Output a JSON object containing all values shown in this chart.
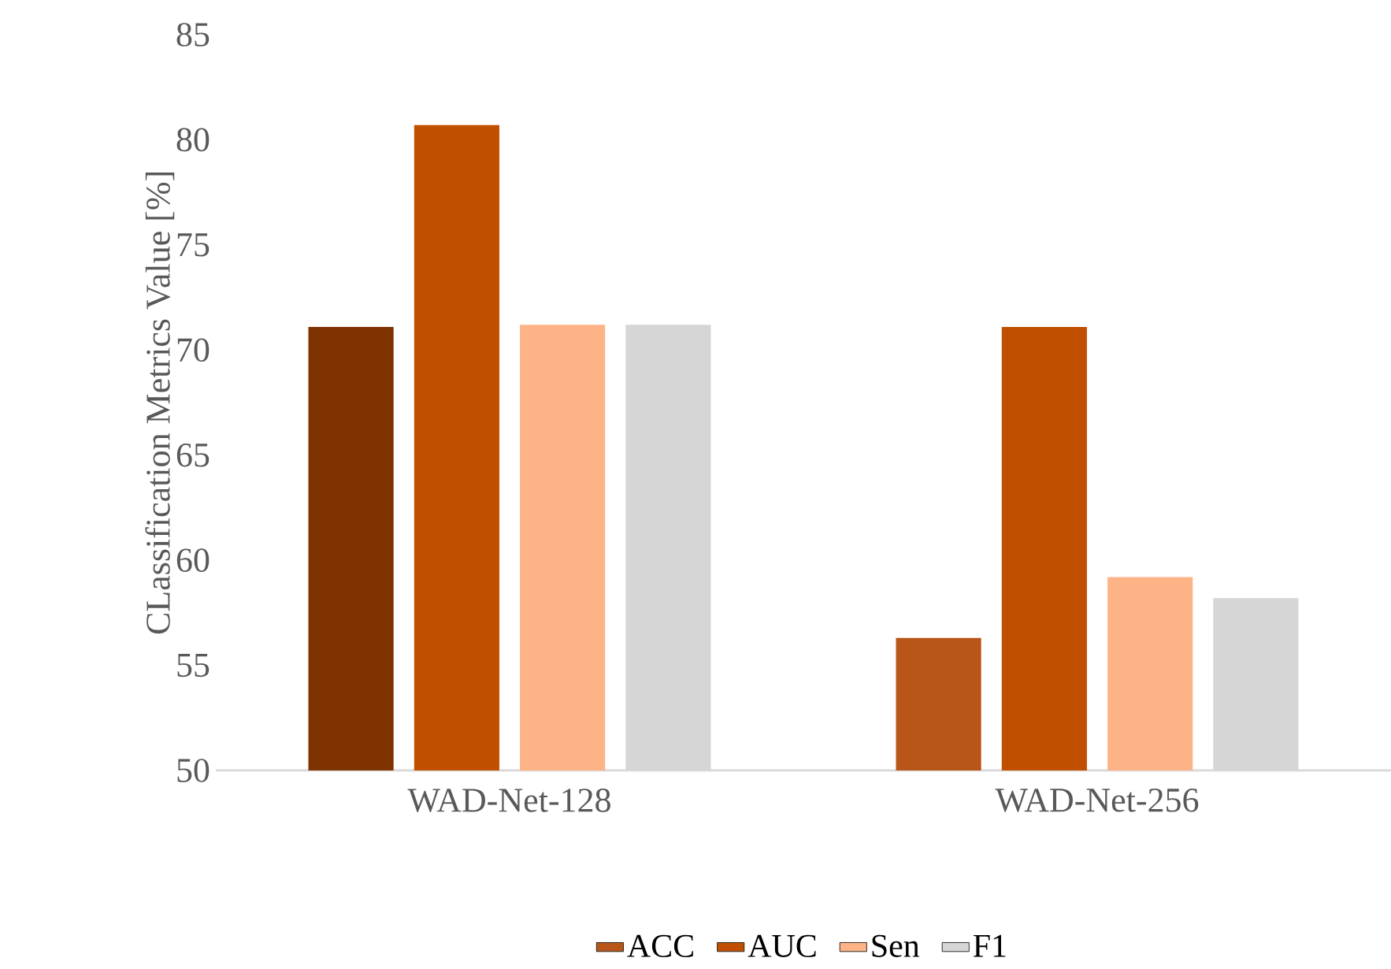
{
  "chart_data": {
    "type": "bar",
    "ylabel": "CLassification  Metrics Value [%]",
    "categories": [
      "WAD-Net-128",
      "WAD-Net-256"
    ],
    "series": [
      {
        "name": "ACC",
        "color": "#b8561a",
        "colors": [
          "#7f3300",
          "#b8561a"
        ],
        "values": [
          71.1,
          56.3
        ]
      },
      {
        "name": "AUC",
        "color": "#c05000",
        "values": [
          80.7,
          71.1
        ]
      },
      {
        "name": "Sen",
        "color": "#fdb386",
        "values": [
          71.2,
          59.2
        ]
      },
      {
        "name": "F1",
        "color": "#d6d6d6",
        "values": [
          71.2,
          58.2
        ]
      }
    ],
    "ylim": [
      50,
      85
    ],
    "yticks": [
      50,
      55,
      60,
      65,
      70,
      75,
      80,
      85
    ],
    "legend": "bottom"
  }
}
